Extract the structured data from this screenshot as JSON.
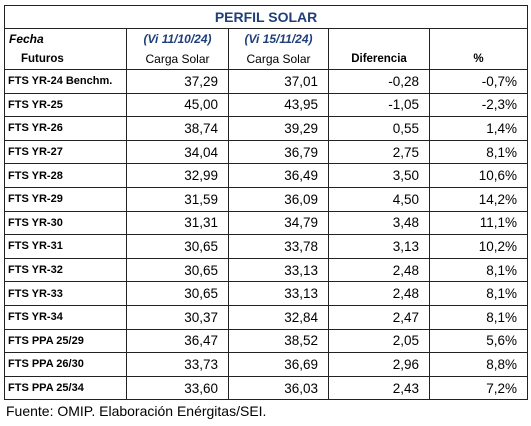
{
  "table": {
    "title": "PERFIL SOLAR",
    "header": {
      "col1_line1": "Fecha",
      "col1_line2": "Futuros",
      "col2_line1": "(Vi 11/10/24)",
      "col2_line2": "Carga Solar",
      "col3_line1": "(Vi 15/11/24)",
      "col3_line2": "Carga Solar",
      "col4": "Diferencia",
      "col5": "%"
    },
    "rows": [
      {
        "label": "FTS YR-24 Benchm.",
        "v1": "37,29",
        "v2": "37,01",
        "diff": "-0,28",
        "pct": "-0,7%"
      },
      {
        "label": "FTS YR-25",
        "v1": "45,00",
        "v2": "43,95",
        "diff": "-1,05",
        "pct": "-2,3%"
      },
      {
        "label": "FTS YR-26",
        "v1": "38,74",
        "v2": "39,29",
        "diff": "0,55",
        "pct": "1,4%"
      },
      {
        "label": "FTS YR-27",
        "v1": "34,04",
        "v2": "36,79",
        "diff": "2,75",
        "pct": "8,1%"
      },
      {
        "label": "FTS YR-28",
        "v1": "32,99",
        "v2": "36,49",
        "diff": "3,50",
        "pct": "10,6%"
      },
      {
        "label": "FTS YR-29",
        "v1": "31,59",
        "v2": "36,09",
        "diff": "4,50",
        "pct": "14,2%"
      },
      {
        "label": "FTS YR-30",
        "v1": "31,31",
        "v2": "34,79",
        "diff": "3,48",
        "pct": "11,1%"
      },
      {
        "label": "FTS YR-31",
        "v1": "30,65",
        "v2": "33,78",
        "diff": "3,13",
        "pct": "10,2%"
      },
      {
        "label": "FTS YR-32",
        "v1": "30,65",
        "v2": "33,13",
        "diff": "2,48",
        "pct": "8,1%"
      },
      {
        "label": "FTS YR-33",
        "v1": "30,65",
        "v2": "33,13",
        "diff": "2,48",
        "pct": "8,1%"
      },
      {
        "label": "FTS YR-34",
        "v1": "30,37",
        "v2": "32,84",
        "diff": "2,47",
        "pct": "8,1%"
      },
      {
        "label": "FTS PPA 25/29",
        "v1": "36,47",
        "v2": "38,52",
        "diff": "2,05",
        "pct": "5,6%"
      },
      {
        "label": "FTS PPA 26/30",
        "v1": "33,73",
        "v2": "36,69",
        "diff": "2,96",
        "pct": "8,8%"
      },
      {
        "label": "FTS PPA 25/34",
        "v1": "33,60",
        "v2": "36,03",
        "diff": "2,43",
        "pct": "7,2%"
      }
    ]
  },
  "source": "Fuente: OMIP. Elaboración Enérgitas/SEI.",
  "colors": {
    "title": "#1f3f7a",
    "date_header": "#1f3f7a",
    "border": "#222222"
  }
}
